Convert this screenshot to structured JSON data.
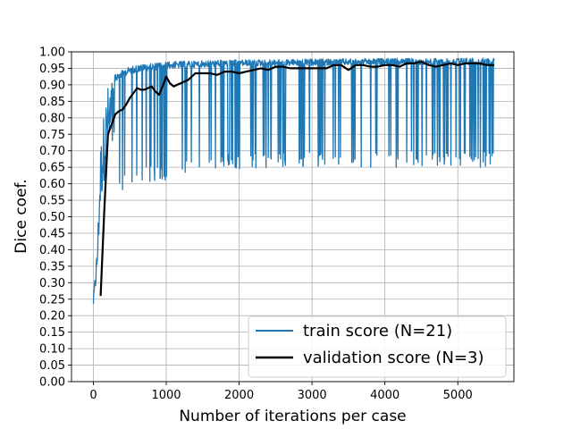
{
  "chart_data": {
    "type": "line",
    "title": "",
    "xlabel": "Number of iterations per case",
    "ylabel": "Dice coef.",
    "xlim": [
      -300,
      5770
    ],
    "ylim": [
      0.0,
      1.0
    ],
    "xticks": [
      0,
      1000,
      2000,
      3000,
      4000,
      5000
    ],
    "xtick_labels": [
      "0",
      "1000",
      "2000",
      "3000",
      "4000",
      "5000"
    ],
    "yticks": [
      0.0,
      0.05,
      0.1,
      0.15,
      0.2,
      0.25,
      0.3,
      0.35,
      0.4,
      0.45,
      0.5,
      0.55,
      0.6,
      0.65,
      0.7,
      0.75,
      0.8,
      0.85,
      0.9,
      0.95,
      1.0
    ],
    "ytick_labels": [
      "0.00",
      "0.05",
      "0.10",
      "0.15",
      "0.20",
      "0.25",
      "0.30",
      "0.35",
      "0.40",
      "0.45",
      "0.50",
      "0.55",
      "0.60",
      "0.65",
      "0.70",
      "0.75",
      "0.80",
      "0.85",
      "0.90",
      "0.95",
      "1.00"
    ],
    "grid": true,
    "legend_position": "lower-right",
    "series": [
      {
        "name": "train score (N=21)",
        "color": "#1f77b4",
        "style": "noisy-line",
        "envelope_x": [
          0,
          50,
          100,
          150,
          200,
          250,
          300,
          400,
          500,
          600,
          800,
          1000,
          1300,
          1600,
          2000,
          2500,
          3000,
          3500,
          4000,
          4500,
          5000,
          5500
        ],
        "envelope_upper": [
          0.26,
          0.4,
          0.72,
          0.83,
          0.9,
          0.92,
          0.93,
          0.945,
          0.955,
          0.96,
          0.965,
          0.97,
          0.972,
          0.974,
          0.976,
          0.977,
          0.978,
          0.979,
          0.98,
          0.98,
          0.981,
          0.981
        ],
        "envelope_lower": [
          0.21,
          0.28,
          0.45,
          0.52,
          0.55,
          0.56,
          0.57,
          0.575,
          0.58,
          0.59,
          0.6,
          0.61,
          0.63,
          0.64,
          0.645,
          0.648,
          0.65,
          0.65,
          0.65,
          0.65,
          0.65,
          0.65
        ]
      },
      {
        "name": "validation score (N=3)",
        "color": "#000000",
        "style": "line",
        "x": [
          100,
          150,
          200,
          250,
          300,
          350,
          400,
          450,
          500,
          550,
          600,
          650,
          700,
          750,
          800,
          850,
          900,
          950,
          1000,
          1050,
          1100,
          1150,
          1200,
          1300,
          1400,
          1500,
          1600,
          1700,
          1800,
          1900,
          2000,
          2100,
          2200,
          2300,
          2400,
          2500,
          2600,
          2700,
          2800,
          2900,
          3000,
          3100,
          3200,
          3300,
          3400,
          3500,
          3600,
          3700,
          3800,
          3900,
          4000,
          4100,
          4200,
          4300,
          4400,
          4500,
          4600,
          4700,
          4800,
          4900,
          5000,
          5100,
          5200,
          5300,
          5400,
          5500
        ],
        "y": [
          0.26,
          0.52,
          0.75,
          0.78,
          0.81,
          0.82,
          0.825,
          0.84,
          0.86,
          0.875,
          0.89,
          0.885,
          0.885,
          0.89,
          0.895,
          0.88,
          0.87,
          0.895,
          0.925,
          0.905,
          0.895,
          0.9,
          0.905,
          0.915,
          0.935,
          0.935,
          0.935,
          0.93,
          0.94,
          0.94,
          0.935,
          0.94,
          0.945,
          0.95,
          0.945,
          0.955,
          0.955,
          0.95,
          0.95,
          0.95,
          0.95,
          0.95,
          0.95,
          0.96,
          0.96,
          0.945,
          0.96,
          0.96,
          0.955,
          0.955,
          0.96,
          0.96,
          0.955,
          0.965,
          0.965,
          0.97,
          0.96,
          0.955,
          0.96,
          0.965,
          0.96,
          0.965,
          0.965,
          0.965,
          0.96,
          0.96
        ]
      }
    ]
  }
}
